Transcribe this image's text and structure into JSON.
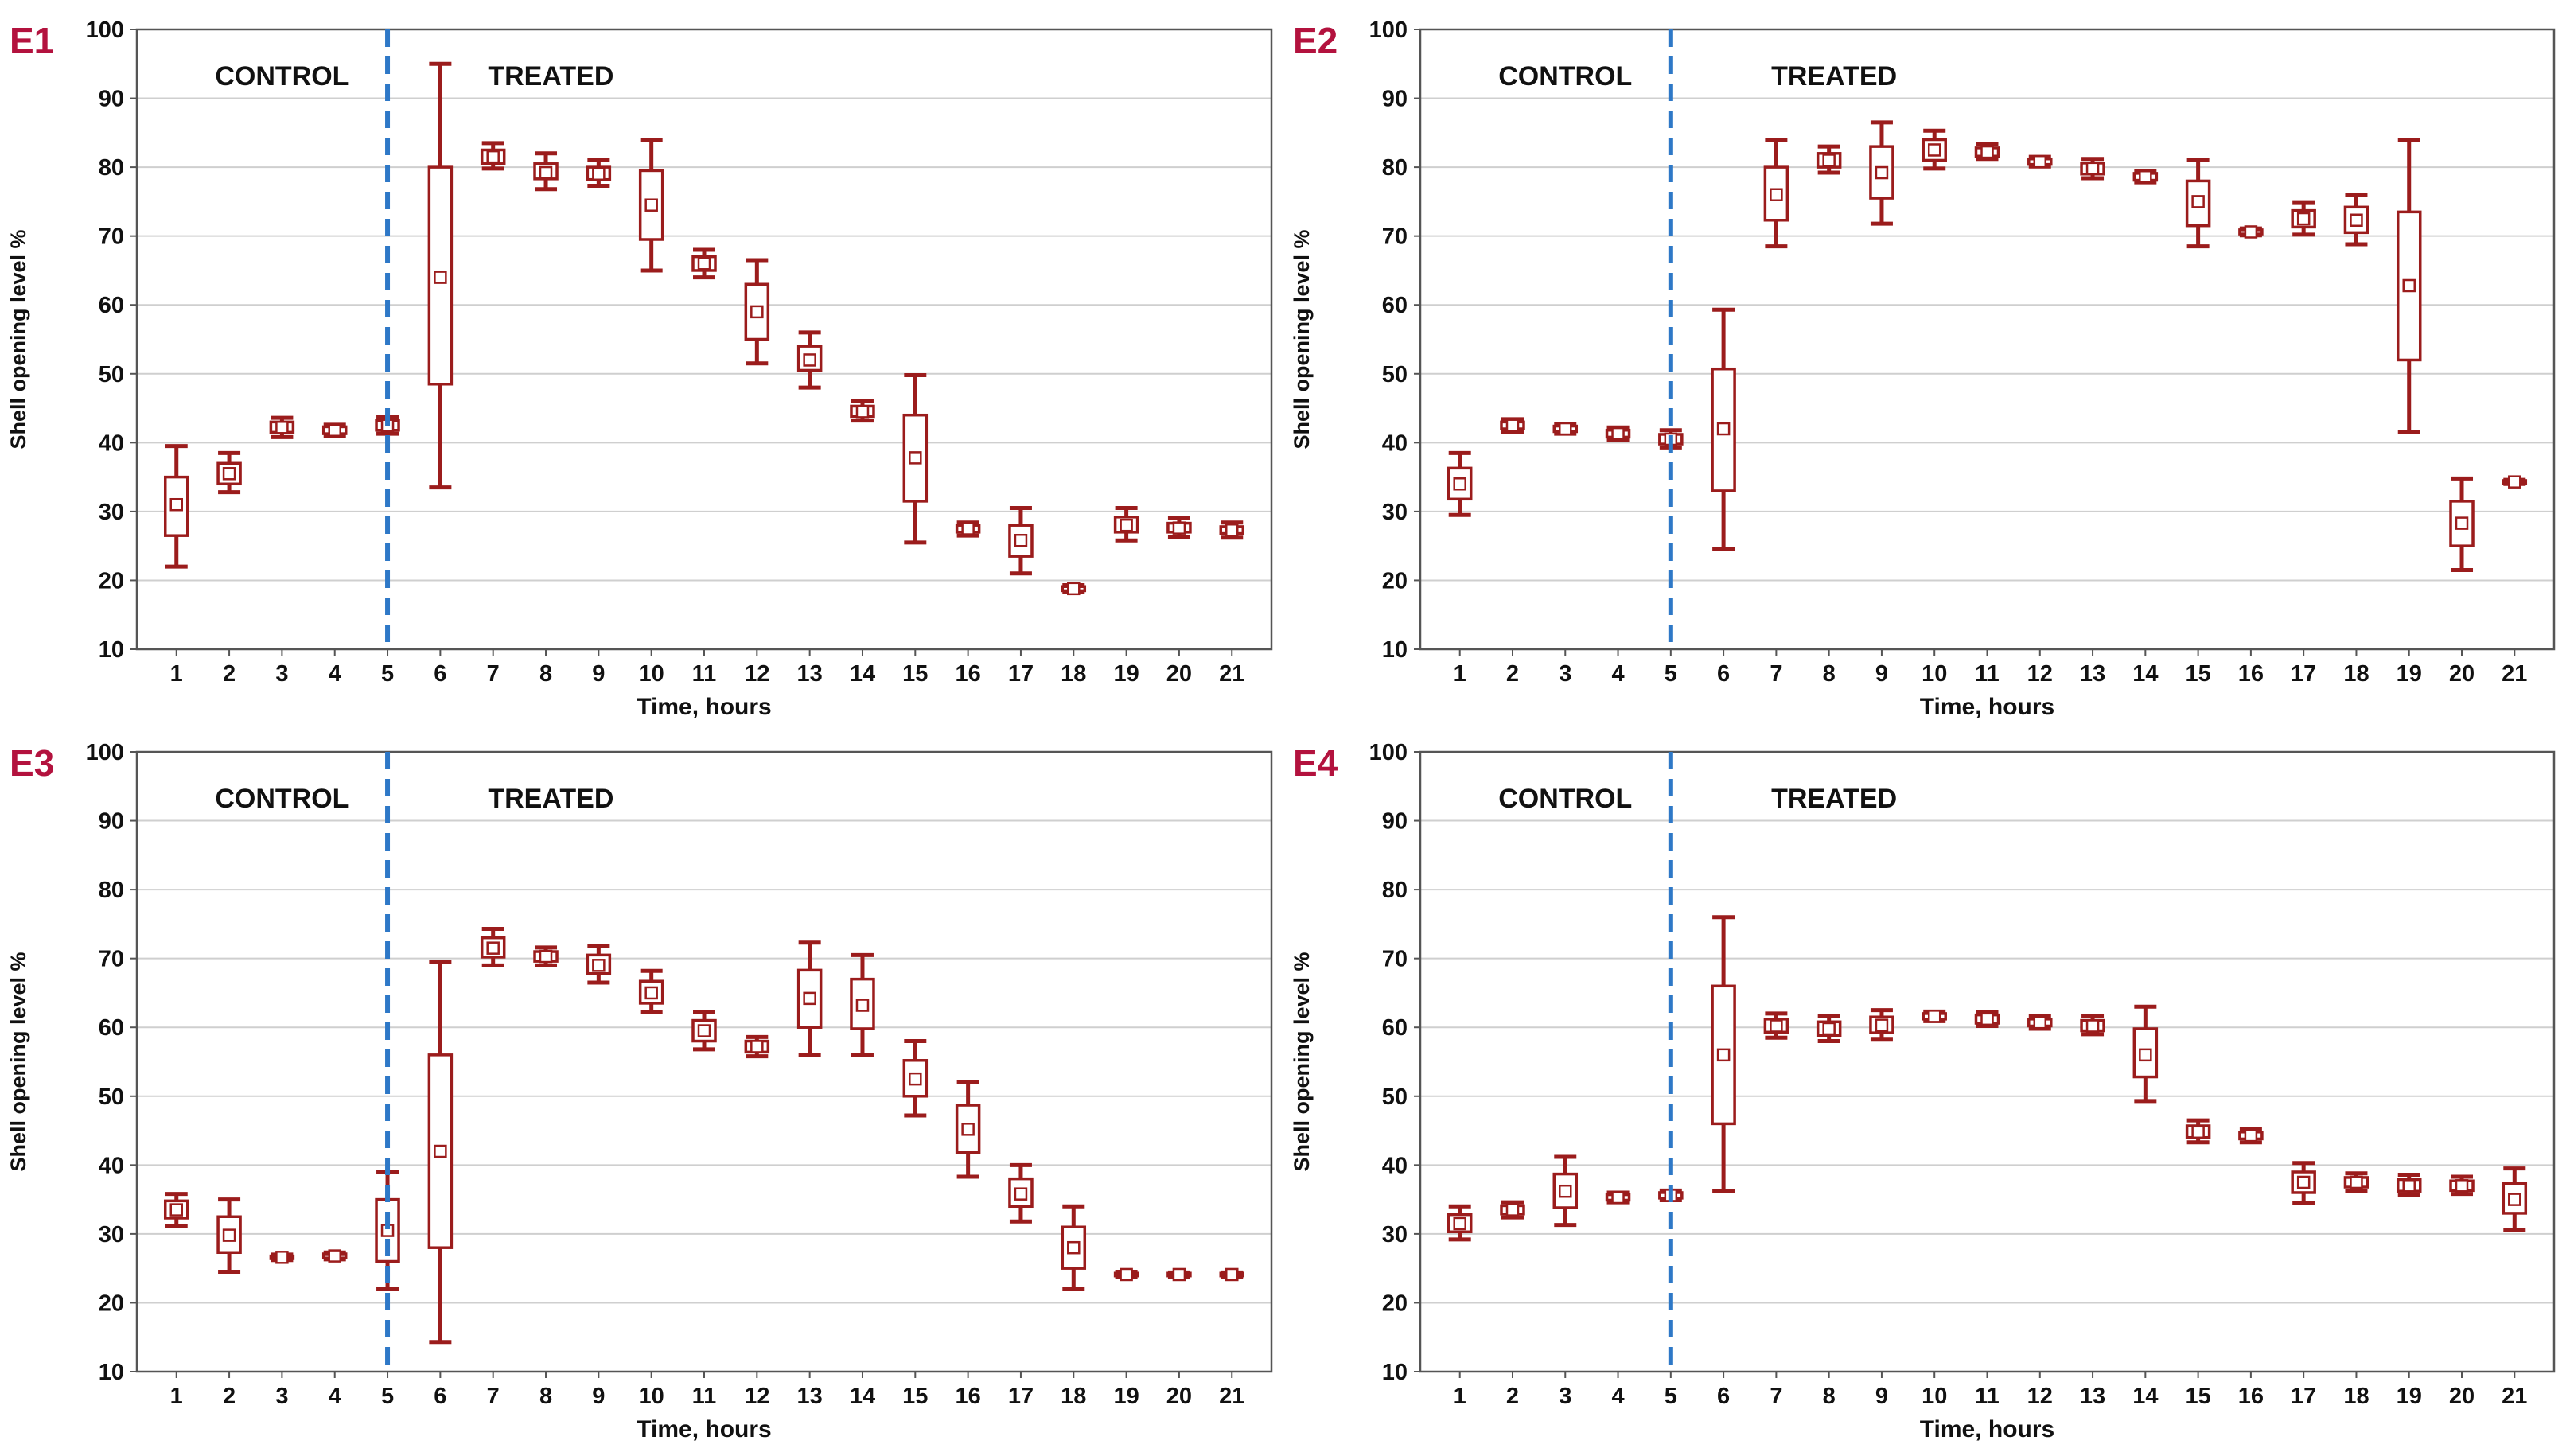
{
  "chart_data": [
    {
      "type": "box",
      "panel_label": "E1",
      "ylabel": "Shell opening level %",
      "xlabel": "Time, hours",
      "ylim": [
        10,
        100
      ],
      "yticks": [
        10,
        20,
        30,
        40,
        50,
        60,
        70,
        80,
        90,
        100
      ],
      "x": [
        1,
        2,
        3,
        4,
        5,
        6,
        7,
        8,
        9,
        10,
        11,
        12,
        13,
        14,
        15,
        16,
        17,
        18,
        19,
        20,
        21
      ],
      "x_tick_labels": [
        "1",
        "2",
        "3",
        "4",
        "5",
        "6",
        "7",
        "8",
        "9",
        "10",
        "11",
        "12",
        "13",
        "14",
        "15",
        "16",
        "17",
        "18",
        "19",
        "20",
        "21"
      ],
      "treatment_start_x": 5,
      "control_label": "CONTROL",
      "treated_label": "TREATED",
      "grid": "horizontal",
      "series": [
        {
          "x": 1,
          "mean": 31,
          "box_low": 26.5,
          "box_high": 35,
          "whisker_low": 22,
          "whisker_high": 39.5
        },
        {
          "x": 2,
          "mean": 35.5,
          "box_low": 34,
          "box_high": 37,
          "whisker_low": 32.8,
          "whisker_high": 38.5
        },
        {
          "x": 3,
          "mean": 42.2,
          "box_low": 41.5,
          "box_high": 43,
          "whisker_low": 40.8,
          "whisker_high": 43.6
        },
        {
          "x": 4,
          "mean": 41.8,
          "box_low": 41.3,
          "box_high": 42.3,
          "whisker_low": 41,
          "whisker_high": 42.6
        },
        {
          "x": 5,
          "mean": 42.5,
          "box_low": 41.8,
          "box_high": 43.2,
          "whisker_low": 41.3,
          "whisker_high": 43.8
        },
        {
          "x": 6,
          "mean": 64,
          "box_low": 48.5,
          "box_high": 80,
          "whisker_low": 33.5,
          "whisker_high": 95
        },
        {
          "x": 7,
          "mean": 81.5,
          "box_low": 80.5,
          "box_high": 82.5,
          "whisker_low": 79.8,
          "whisker_high": 83.5
        },
        {
          "x": 8,
          "mean": 79.2,
          "box_low": 78.3,
          "box_high": 80.5,
          "whisker_low": 76.8,
          "whisker_high": 82
        },
        {
          "x": 9,
          "mean": 79,
          "box_low": 78.2,
          "box_high": 80,
          "whisker_low": 77.3,
          "whisker_high": 81
        },
        {
          "x": 10,
          "mean": 74.5,
          "box_low": 69.5,
          "box_high": 79.5,
          "whisker_low": 65,
          "whisker_high": 84
        },
        {
          "x": 11,
          "mean": 66,
          "box_low": 65,
          "box_high": 67,
          "whisker_low": 64,
          "whisker_high": 68
        },
        {
          "x": 12,
          "mean": 59,
          "box_low": 55,
          "box_high": 63,
          "whisker_low": 51.5,
          "whisker_high": 66.5
        },
        {
          "x": 13,
          "mean": 52,
          "box_low": 50.5,
          "box_high": 54,
          "whisker_low": 48,
          "whisker_high": 56
        },
        {
          "x": 14,
          "mean": 44.5,
          "box_low": 43.8,
          "box_high": 45.3,
          "whisker_low": 43.2,
          "whisker_high": 46
        },
        {
          "x": 15,
          "mean": 37.8,
          "box_low": 31.5,
          "box_high": 44,
          "whisker_low": 25.5,
          "whisker_high": 49.8
        },
        {
          "x": 16,
          "mean": 27.5,
          "box_low": 27,
          "box_high": 28,
          "whisker_low": 26.5,
          "whisker_high": 28.4
        },
        {
          "x": 17,
          "mean": 25.8,
          "box_low": 23.5,
          "box_high": 28,
          "whisker_low": 21,
          "whisker_high": 30.5
        },
        {
          "x": 18,
          "mean": 18.8,
          "box_low": 18.5,
          "box_high": 19.1,
          "whisker_low": 18.3,
          "whisker_high": 19.3
        },
        {
          "x": 19,
          "mean": 28,
          "box_low": 27,
          "box_high": 29.2,
          "whisker_low": 25.8,
          "whisker_high": 30.5
        },
        {
          "x": 20,
          "mean": 27.6,
          "box_low": 27,
          "box_high": 28.3,
          "whisker_low": 26.3,
          "whisker_high": 29
        },
        {
          "x": 21,
          "mean": 27.3,
          "box_low": 26.8,
          "box_high": 27.8,
          "whisker_low": 26.2,
          "whisker_high": 28.4
        }
      ]
    },
    {
      "type": "box",
      "panel_label": "E2",
      "ylabel": "Shell opening level %",
      "xlabel": "Time, hours",
      "ylim": [
        10,
        100
      ],
      "yticks": [
        10,
        20,
        30,
        40,
        50,
        60,
        70,
        80,
        90,
        100
      ],
      "x": [
        1,
        2,
        3,
        4,
        5,
        6,
        7,
        8,
        9,
        10,
        11,
        12,
        13,
        14,
        15,
        16,
        17,
        18,
        19,
        20,
        21
      ],
      "x_tick_labels": [
        "1",
        "2",
        "3",
        "4",
        "5",
        "6",
        "7",
        "8",
        "9",
        "10",
        "11",
        "12",
        "13",
        "14",
        "15",
        "16",
        "17",
        "18",
        "19",
        "20",
        "21"
      ],
      "treatment_start_x": 5,
      "control_label": "CONTROL",
      "treated_label": "TREATED",
      "grid": "horizontal",
      "series": [
        {
          "x": 1,
          "mean": 34,
          "box_low": 31.8,
          "box_high": 36.3,
          "whisker_low": 29.5,
          "whisker_high": 38.5
        },
        {
          "x": 2,
          "mean": 42.5,
          "box_low": 42,
          "box_high": 43,
          "whisker_low": 41.6,
          "whisker_high": 43.4
        },
        {
          "x": 3,
          "mean": 42,
          "box_low": 41.6,
          "box_high": 42.4,
          "whisker_low": 41.3,
          "whisker_high": 42.7
        },
        {
          "x": 4,
          "mean": 41.3,
          "box_low": 40.8,
          "box_high": 41.8,
          "whisker_low": 40.4,
          "whisker_high": 42.2
        },
        {
          "x": 5,
          "mean": 40.5,
          "box_low": 39.8,
          "box_high": 41.2,
          "whisker_low": 39.3,
          "whisker_high": 41.8
        },
        {
          "x": 6,
          "mean": 42,
          "box_low": 33,
          "box_high": 50.7,
          "whisker_low": 24.5,
          "whisker_high": 59.3
        },
        {
          "x": 7,
          "mean": 76,
          "box_low": 72.3,
          "box_high": 80,
          "whisker_low": 68.5,
          "whisker_high": 84
        },
        {
          "x": 8,
          "mean": 81,
          "box_low": 80,
          "box_high": 82,
          "whisker_low": 79.2,
          "whisker_high": 83
        },
        {
          "x": 9,
          "mean": 79.2,
          "box_low": 75.5,
          "box_high": 83,
          "whisker_low": 71.8,
          "whisker_high": 86.5
        },
        {
          "x": 10,
          "mean": 82.5,
          "box_low": 81,
          "box_high": 84,
          "whisker_low": 79.8,
          "whisker_high": 85.3
        },
        {
          "x": 11,
          "mean": 82.2,
          "box_low": 81.6,
          "box_high": 82.8,
          "whisker_low": 81.2,
          "whisker_high": 83.3
        },
        {
          "x": 12,
          "mean": 80.8,
          "box_low": 80.4,
          "box_high": 81.2,
          "whisker_low": 80.1,
          "whisker_high": 81.5
        },
        {
          "x": 13,
          "mean": 79.8,
          "box_low": 79,
          "box_high": 80.6,
          "whisker_low": 78.4,
          "whisker_high": 81.2
        },
        {
          "x": 14,
          "mean": 78.6,
          "box_low": 78.1,
          "box_high": 79.1,
          "whisker_low": 77.8,
          "whisker_high": 79.4
        },
        {
          "x": 15,
          "mean": 75,
          "box_low": 71.5,
          "box_high": 78,
          "whisker_low": 68.5,
          "whisker_high": 81
        },
        {
          "x": 16,
          "mean": 70.6,
          "box_low": 70.3,
          "box_high": 70.9,
          "whisker_low": 70.1,
          "whisker_high": 71.1
        },
        {
          "x": 17,
          "mean": 72.5,
          "box_low": 71.3,
          "box_high": 73.7,
          "whisker_low": 70.2,
          "whisker_high": 74.8
        },
        {
          "x": 18,
          "mean": 72.3,
          "box_low": 70.5,
          "box_high": 74.2,
          "whisker_low": 68.8,
          "whisker_high": 76
        },
        {
          "x": 19,
          "mean": 62.8,
          "box_low": 52,
          "box_high": 73.5,
          "whisker_low": 41.5,
          "whisker_high": 84
        },
        {
          "x": 20,
          "mean": 28.3,
          "box_low": 25,
          "box_high": 31.5,
          "whisker_low": 21.5,
          "whisker_high": 34.8
        },
        {
          "x": 21,
          "mean": 34.3,
          "box_low": 34.1,
          "box_high": 34.5,
          "whisker_low": 34,
          "whisker_high": 34.6
        }
      ]
    },
    {
      "type": "box",
      "panel_label": "E3",
      "ylabel": "Shell opening level %",
      "xlabel": "Time, hours",
      "ylim": [
        10,
        100
      ],
      "yticks": [
        10,
        20,
        30,
        40,
        50,
        60,
        70,
        80,
        90,
        100
      ],
      "x": [
        1,
        2,
        3,
        4,
        5,
        6,
        7,
        8,
        9,
        10,
        11,
        12,
        13,
        14,
        15,
        16,
        17,
        18,
        19,
        20,
        21
      ],
      "x_tick_labels": [
        "1",
        "2",
        "3",
        "4",
        "5",
        "6",
        "7",
        "8",
        "9",
        "10",
        "11",
        "12",
        "13",
        "14",
        "15",
        "16",
        "17",
        "18",
        "19",
        "20",
        "21"
      ],
      "treatment_start_x": 5,
      "control_label": "CONTROL",
      "treated_label": "TREATED",
      "grid": "horizontal",
      "series": [
        {
          "x": 1,
          "mean": 33.5,
          "box_low": 32.3,
          "box_high": 34.8,
          "whisker_low": 31.2,
          "whisker_high": 35.8
        },
        {
          "x": 2,
          "mean": 29.8,
          "box_low": 27.3,
          "box_high": 32.5,
          "whisker_low": 24.5,
          "whisker_high": 35
        },
        {
          "x": 3,
          "mean": 26.6,
          "box_low": 26.4,
          "box_high": 26.8,
          "whisker_low": 26.2,
          "whisker_high": 27
        },
        {
          "x": 4,
          "mean": 26.8,
          "box_low": 26.5,
          "box_high": 27.1,
          "whisker_low": 26.3,
          "whisker_high": 27.3
        },
        {
          "x": 5,
          "mean": 30.5,
          "box_low": 26,
          "box_high": 35,
          "whisker_low": 22,
          "whisker_high": 39
        },
        {
          "x": 6,
          "mean": 42,
          "box_low": 28,
          "box_high": 56,
          "whisker_low": 14.3,
          "whisker_high": 69.5
        },
        {
          "x": 7,
          "mean": 71.5,
          "box_low": 70.2,
          "box_high": 73,
          "whisker_low": 69,
          "whisker_high": 74.3
        },
        {
          "x": 8,
          "mean": 70.3,
          "box_low": 69.6,
          "box_high": 71,
          "whisker_low": 69,
          "whisker_high": 71.6
        },
        {
          "x": 9,
          "mean": 69,
          "box_low": 67.8,
          "box_high": 70.5,
          "whisker_low": 66.5,
          "whisker_high": 71.8
        },
        {
          "x": 10,
          "mean": 65,
          "box_low": 63.5,
          "box_high": 66.7,
          "whisker_low": 62.2,
          "whisker_high": 68.2
        },
        {
          "x": 11,
          "mean": 59.5,
          "box_low": 58,
          "box_high": 61,
          "whisker_low": 56.8,
          "whisker_high": 62.2
        },
        {
          "x": 12,
          "mean": 57.2,
          "box_low": 56.4,
          "box_high": 58,
          "whisker_low": 55.8,
          "whisker_high": 58.6
        },
        {
          "x": 13,
          "mean": 64.2,
          "box_low": 60,
          "box_high": 68.3,
          "whisker_low": 56,
          "whisker_high": 72.3
        },
        {
          "x": 14,
          "mean": 63.2,
          "box_low": 59.8,
          "box_high": 67,
          "whisker_low": 56,
          "whisker_high": 70.5
        },
        {
          "x": 15,
          "mean": 52.5,
          "box_low": 50,
          "box_high": 55.2,
          "whisker_low": 47.2,
          "whisker_high": 58
        },
        {
          "x": 16,
          "mean": 45.2,
          "box_low": 41.8,
          "box_high": 48.7,
          "whisker_low": 38.3,
          "whisker_high": 52
        },
        {
          "x": 17,
          "mean": 35.8,
          "box_low": 34,
          "box_high": 38,
          "whisker_low": 31.8,
          "whisker_high": 40
        },
        {
          "x": 18,
          "mean": 28,
          "box_low": 25,
          "box_high": 31,
          "whisker_low": 22,
          "whisker_high": 34
        },
        {
          "x": 19,
          "mean": 24.1,
          "box_low": 23.9,
          "box_high": 24.3,
          "whisker_low": 23.7,
          "whisker_high": 24.5
        },
        {
          "x": 20,
          "mean": 24.1,
          "box_low": 23.9,
          "box_high": 24.3,
          "whisker_low": 23.8,
          "whisker_high": 24.4
        },
        {
          "x": 21,
          "mean": 24.1,
          "box_low": 23.9,
          "box_high": 24.3,
          "whisker_low": 23.8,
          "whisker_high": 24.4
        }
      ]
    },
    {
      "type": "box",
      "panel_label": "E4",
      "ylabel": "Shell opening level %",
      "xlabel": "Time, hours",
      "ylim": [
        10,
        100
      ],
      "yticks": [
        10,
        20,
        30,
        40,
        50,
        60,
        70,
        80,
        90,
        100
      ],
      "x": [
        1,
        2,
        3,
        4,
        5,
        6,
        7,
        8,
        9,
        10,
        11,
        12,
        13,
        14,
        15,
        16,
        17,
        18,
        19,
        20,
        21
      ],
      "x_tick_labels": [
        "1",
        "2",
        "3",
        "4",
        "5",
        "6",
        "7",
        "8",
        "9",
        "10",
        "11",
        "12",
        "13",
        "14",
        "15",
        "16",
        "17",
        "18",
        "19",
        "20",
        "21"
      ],
      "treatment_start_x": 5,
      "control_label": "CONTROL",
      "treated_label": "TREATED",
      "grid": "horizontal",
      "series": [
        {
          "x": 1,
          "mean": 31.5,
          "box_low": 30.3,
          "box_high": 32.8,
          "whisker_low": 29.2,
          "whisker_high": 34
        },
        {
          "x": 2,
          "mean": 33.5,
          "box_low": 32.9,
          "box_high": 34.1,
          "whisker_low": 32.4,
          "whisker_high": 34.6
        },
        {
          "x": 3,
          "mean": 36.2,
          "box_low": 33.8,
          "box_high": 38.7,
          "whisker_low": 31.3,
          "whisker_high": 41.2
        },
        {
          "x": 4,
          "mean": 35.3,
          "box_low": 34.9,
          "box_high": 35.7,
          "whisker_low": 34.6,
          "whisker_high": 36
        },
        {
          "x": 5,
          "mean": 35.6,
          "box_low": 35.2,
          "box_high": 36,
          "whisker_low": 34.9,
          "whisker_high": 36.3
        },
        {
          "x": 6,
          "mean": 56,
          "box_low": 46,
          "box_high": 66,
          "whisker_low": 36.2,
          "whisker_high": 76
        },
        {
          "x": 7,
          "mean": 60.2,
          "box_low": 59.3,
          "box_high": 61.2,
          "whisker_low": 58.5,
          "whisker_high": 62
        },
        {
          "x": 8,
          "mean": 59.8,
          "box_low": 58.8,
          "box_high": 60.8,
          "whisker_low": 58,
          "whisker_high": 61.6
        },
        {
          "x": 9,
          "mean": 60.3,
          "box_low": 59.2,
          "box_high": 61.5,
          "whisker_low": 58.2,
          "whisker_high": 62.5
        },
        {
          "x": 10,
          "mean": 61.6,
          "box_low": 61.2,
          "box_high": 62,
          "whisker_low": 60.9,
          "whisker_high": 62.3
        },
        {
          "x": 11,
          "mean": 61.2,
          "box_low": 60.6,
          "box_high": 61.8,
          "whisker_low": 60.2,
          "whisker_high": 62.2
        },
        {
          "x": 12,
          "mean": 60.7,
          "box_low": 60.2,
          "box_high": 61.2,
          "whisker_low": 59.8,
          "whisker_high": 61.6
        },
        {
          "x": 13,
          "mean": 60.2,
          "box_low": 59.5,
          "box_high": 61,
          "whisker_low": 59,
          "whisker_high": 61.6
        },
        {
          "x": 14,
          "mean": 56,
          "box_low": 52.8,
          "box_high": 59.8,
          "whisker_low": 49.3,
          "whisker_high": 63
        },
        {
          "x": 15,
          "mean": 44.8,
          "box_low": 44,
          "box_high": 45.7,
          "whisker_low": 43.3,
          "whisker_high": 46.5
        },
        {
          "x": 16,
          "mean": 44.3,
          "box_low": 43.8,
          "box_high": 44.8,
          "whisker_low": 43.3,
          "whisker_high": 45.3
        },
        {
          "x": 17,
          "mean": 37.5,
          "box_low": 36,
          "box_high": 39,
          "whisker_low": 34.5,
          "whisker_high": 40.3
        },
        {
          "x": 18,
          "mean": 37.5,
          "box_low": 36.8,
          "box_high": 38.2,
          "whisker_low": 36.2,
          "whisker_high": 38.8
        },
        {
          "x": 19,
          "mean": 37,
          "box_low": 36.2,
          "box_high": 37.9,
          "whisker_low": 35.6,
          "whisker_high": 38.6
        },
        {
          "x": 20,
          "mean": 37,
          "box_low": 36.3,
          "box_high": 37.7,
          "whisker_low": 35.8,
          "whisker_high": 38.3
        },
        {
          "x": 21,
          "mean": 35,
          "box_low": 33,
          "box_high": 37.3,
          "whisker_low": 30.5,
          "whisker_high": 39.5
        }
      ]
    }
  ],
  "colors": {
    "box": "#9b1c1c",
    "divider": "#2e78c7",
    "panel_label": "#b3123e",
    "grid": "#cfcfcf",
    "axis": "#555555",
    "text": "#111111"
  }
}
